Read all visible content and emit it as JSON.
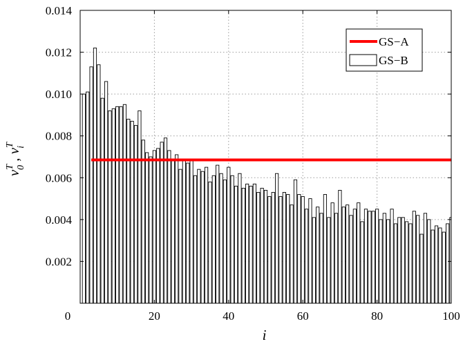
{
  "chart_data": {
    "type": "bar",
    "title": "",
    "xlabel": "i",
    "ylabel": {
      "base1": "ν",
      "sup1": "T",
      "sub1": "0",
      "sep": " , ",
      "base2": "ν",
      "sup2": "T",
      "sub2": "i"
    },
    "xlim": [
      0,
      100
    ],
    "ylim": [
      0,
      0.014
    ],
    "xticks": [
      "0",
      "20",
      "40",
      "60",
      "80",
      "100"
    ],
    "yticks": [
      "0.002",
      "0.004",
      "0.006",
      "0.008",
      "0.010",
      "0.012",
      "0.014"
    ],
    "grid": true,
    "legend": {
      "position": "top-right",
      "entries": [
        "GS−A",
        "GS−B"
      ]
    },
    "series": [
      {
        "name": "GS−A",
        "style": "line",
        "color": "#ff0000",
        "x": [
          3,
          100
        ],
        "values": [
          0.00685,
          0.00685
        ]
      },
      {
        "name": "GS−B",
        "style": "bar",
        "x": [
          1,
          2,
          3,
          4,
          5,
          6,
          7,
          8,
          9,
          10,
          11,
          12,
          13,
          14,
          15,
          16,
          17,
          18,
          19,
          20,
          21,
          22,
          23,
          24,
          25,
          26,
          27,
          28,
          29,
          30,
          31,
          32,
          33,
          34,
          35,
          36,
          37,
          38,
          39,
          40,
          41,
          42,
          43,
          44,
          45,
          46,
          47,
          48,
          49,
          50,
          51,
          52,
          53,
          54,
          55,
          56,
          57,
          58,
          59,
          60,
          61,
          62,
          63,
          64,
          65,
          66,
          67,
          68,
          69,
          70,
          71,
          72,
          73,
          74,
          75,
          76,
          77,
          78,
          79,
          80,
          81,
          82,
          83,
          84,
          85,
          86,
          87,
          88,
          89,
          90,
          91,
          92,
          93,
          94,
          95,
          96,
          97,
          98,
          99,
          100
        ],
        "values": [
          0.01,
          0.0101,
          0.0113,
          0.0122,
          0.0114,
          0.0098,
          0.0106,
          0.0092,
          0.0093,
          0.0094,
          0.0094,
          0.0095,
          0.0088,
          0.0087,
          0.0085,
          0.0092,
          0.0078,
          0.0072,
          0.007,
          0.0073,
          0.0074,
          0.0077,
          0.0079,
          0.0073,
          0.0068,
          0.0071,
          0.0064,
          0.0068,
          0.0067,
          0.0069,
          0.0061,
          0.0064,
          0.0063,
          0.0065,
          0.0058,
          0.0061,
          0.0066,
          0.0062,
          0.0059,
          0.0065,
          0.0061,
          0.0056,
          0.0062,
          0.0055,
          0.0057,
          0.0056,
          0.0057,
          0.0053,
          0.0055,
          0.0054,
          0.0051,
          0.0053,
          0.0062,
          0.0051,
          0.0053,
          0.0052,
          0.0047,
          0.0059,
          0.0052,
          0.0051,
          0.0045,
          0.005,
          0.0041,
          0.0046,
          0.0043,
          0.0052,
          0.0041,
          0.0048,
          0.0043,
          0.0054,
          0.0046,
          0.0047,
          0.0042,
          0.0045,
          0.0048,
          0.0039,
          0.0045,
          0.0044,
          0.0044,
          0.0045,
          0.004,
          0.0043,
          0.004,
          0.0045,
          0.0038,
          0.0041,
          0.0041,
          0.0039,
          0.0038,
          0.0044,
          0.0042,
          0.0033,
          0.0043,
          0.004,
          0.0035,
          0.0037,
          0.0036,
          0.0034,
          0.0038,
          0.0041
        ]
      }
    ]
  }
}
